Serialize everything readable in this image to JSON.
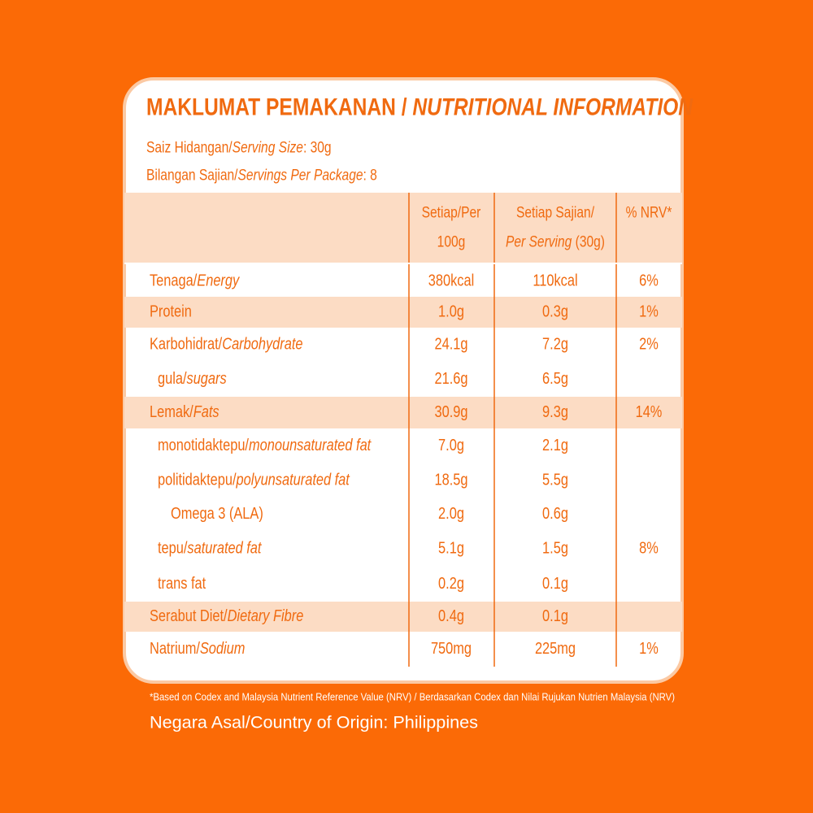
{
  "title": [
    {
      "t": "MAKLUMAT PEMAKANAN / "
    },
    {
      "t": "NUTRITIONAL INFORMATION",
      "i": true
    }
  ],
  "serving_size": [
    {
      "t": "Saiz Hidangan/"
    },
    {
      "t": "Serving Size",
      "i": true
    },
    {
      "t": ": 30g"
    }
  ],
  "servings_per_package": [
    {
      "t": "Bilangan Sajian/"
    },
    {
      "t": "Servings Per Package",
      "i": true
    },
    {
      "t": ": 8"
    }
  ],
  "table": {
    "header": [
      [
        [
          {
            "t": "Setiap/Per"
          }
        ],
        [
          {
            "t": "100g"
          }
        ]
      ],
      [
        [
          {
            "t": "Setiap Sajian/"
          }
        ],
        [
          {
            "t": "Per Serving",
            "i": true
          },
          {
            "t": " (30g)"
          }
        ]
      ],
      [
        [
          {
            "t": "% NRV*"
          }
        ]
      ]
    ],
    "rows": [
      {
        "label": [
          {
            "t": "Tenaga/"
          },
          {
            "t": "Energy",
            "i": true
          }
        ],
        "indent": 0,
        "shaded": false,
        "cells": [
          "380kcal",
          "110kcal",
          "6%"
        ]
      },
      {
        "label": [
          {
            "t": "Protein"
          }
        ],
        "indent": 0,
        "shaded": true,
        "cells": [
          "1.0g",
          "0.3g",
          "1%"
        ]
      },
      {
        "label": [
          {
            "t": "Karbohidrat/"
          },
          {
            "t": "Carbohydrate",
            "i": true
          }
        ],
        "indent": 0,
        "shaded": false,
        "cells": [
          "24.1g",
          "7.2g",
          "2%"
        ]
      },
      {
        "label": [
          {
            "t": "gula/"
          },
          {
            "t": "sugars",
            "i": true
          }
        ],
        "indent": 1,
        "shaded": false,
        "cells": [
          "21.6g",
          "6.5g",
          null
        ]
      },
      {
        "label": [
          {
            "t": "Lemak/"
          },
          {
            "t": "Fats",
            "i": true
          }
        ],
        "indent": 0,
        "shaded": true,
        "cells": [
          "30.9g",
          "9.3g",
          "14%"
        ]
      },
      {
        "label": [
          {
            "t": "monotidaktepu/"
          },
          {
            "t": "monounsaturated fat",
            "i": true
          }
        ],
        "indent": 1,
        "shaded": false,
        "cells": [
          "7.0g",
          "2.1g",
          null
        ]
      },
      {
        "label": [
          {
            "t": "politidaktepu/"
          },
          {
            "t": "polyunsaturated fat",
            "i": true
          }
        ],
        "indent": 1,
        "shaded": false,
        "cells": [
          "18.5g",
          "5.5g",
          null
        ]
      },
      {
        "label": [
          {
            "t": "Omega 3 (ALA)"
          }
        ],
        "indent": 2,
        "shaded": false,
        "cells": [
          "2.0g",
          "0.6g",
          null
        ]
      },
      {
        "label": [
          {
            "t": "tepu/"
          },
          {
            "t": "saturated fat",
            "i": true
          }
        ],
        "indent": 1,
        "shaded": false,
        "cells": [
          "5.1g",
          "1.5g",
          "8%"
        ]
      },
      {
        "label": [
          {
            "t": "trans fat"
          }
        ],
        "indent": 1,
        "shaded": false,
        "cells": [
          "0.2g",
          "0.1g",
          null
        ]
      },
      {
        "label": [
          {
            "t": "Serabut Diet/"
          },
          {
            "t": "Dietary Fibre",
            "i": true
          }
        ],
        "indent": 0,
        "shaded": true,
        "cells": [
          "0.4g",
          "0.1g",
          null
        ]
      },
      {
        "label": [
          {
            "t": "Natrium/"
          },
          {
            "t": "Sodium",
            "i": true
          }
        ],
        "indent": 0,
        "shaded": false,
        "cells": [
          "750mg",
          "225mg",
          "1%"
        ]
      }
    ]
  },
  "footnote": "*Based on Codex and Malaysia Nutrient Reference Value (NRV) / Berdasarkan Codex dan Nilai Rujukan Nutrien Malaysia (NRV)",
  "origin": "Negara Asal/Country of Origin: Philippines"
}
